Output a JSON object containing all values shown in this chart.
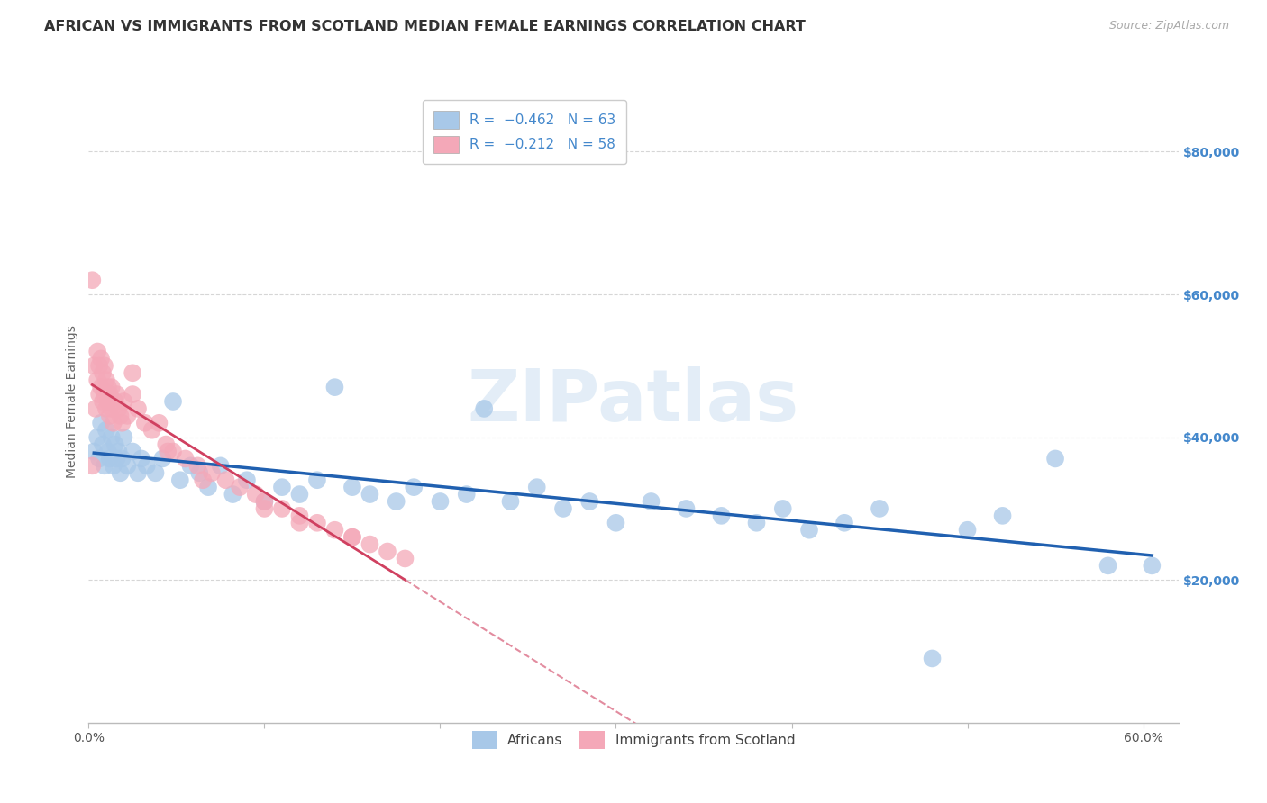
{
  "title": "AFRICAN VS IMMIGRANTS FROM SCOTLAND MEDIAN FEMALE EARNINGS CORRELATION CHART",
  "source": "Source: ZipAtlas.com",
  "ylabel": "Median Female Earnings",
  "yaxis_labels": [
    "$20,000",
    "$40,000",
    "$60,000",
    "$80,000"
  ],
  "yaxis_values": [
    20000,
    40000,
    60000,
    80000
  ],
  "legend_blue_r": "R = −0.462",
  "legend_blue_n": "N = 63",
  "legend_pink_r": "R = −0.212",
  "legend_pink_n": "N = 58",
  "legend_label_blue": "Africans",
  "legend_label_pink": "Immigrants from Scotland",
  "blue_color": "#a8c8e8",
  "pink_color": "#f4a8b8",
  "blue_line_color": "#2060b0",
  "pink_line_color": "#d04060",
  "background_color": "#ffffff",
  "grid_color": "#cccccc",
  "title_color": "#333333",
  "axis_label_color": "#4488cc",
  "watermark_color": "#c8ddf0",
  "watermark_text": "ZIPatlas",
  "xlim": [
    0.0,
    0.62
  ],
  "ylim": [
    0,
    90000
  ],
  "africans_x": [
    0.003,
    0.005,
    0.006,
    0.007,
    0.008,
    0.009,
    0.01,
    0.011,
    0.012,
    0.013,
    0.014,
    0.015,
    0.016,
    0.017,
    0.018,
    0.019,
    0.02,
    0.022,
    0.025,
    0.028,
    0.03,
    0.033,
    0.038,
    0.042,
    0.048,
    0.052,
    0.058,
    0.063,
    0.068,
    0.075,
    0.082,
    0.09,
    0.1,
    0.11,
    0.12,
    0.13,
    0.14,
    0.15,
    0.16,
    0.175,
    0.185,
    0.2,
    0.215,
    0.225,
    0.24,
    0.255,
    0.27,
    0.285,
    0.3,
    0.32,
    0.34,
    0.36,
    0.38,
    0.395,
    0.41,
    0.43,
    0.45,
    0.48,
    0.5,
    0.52,
    0.55,
    0.58,
    0.605
  ],
  "africans_y": [
    38000,
    40000,
    37000,
    42000,
    39000,
    36000,
    41000,
    38000,
    37000,
    40000,
    36000,
    39000,
    37000,
    38000,
    35000,
    37000,
    40000,
    36000,
    38000,
    35000,
    37000,
    36000,
    35000,
    37000,
    45000,
    34000,
    36000,
    35000,
    33000,
    36000,
    32000,
    34000,
    31000,
    33000,
    32000,
    34000,
    47000,
    33000,
    32000,
    31000,
    33000,
    31000,
    32000,
    44000,
    31000,
    33000,
    30000,
    31000,
    28000,
    31000,
    30000,
    29000,
    28000,
    30000,
    27000,
    28000,
    30000,
    9000,
    27000,
    29000,
    37000,
    22000,
    22000
  ],
  "scotland_x": [
    0.002,
    0.003,
    0.004,
    0.005,
    0.005,
    0.006,
    0.006,
    0.007,
    0.007,
    0.008,
    0.008,
    0.009,
    0.009,
    0.01,
    0.01,
    0.011,
    0.011,
    0.012,
    0.012,
    0.013,
    0.013,
    0.014,
    0.015,
    0.016,
    0.017,
    0.018,
    0.019,
    0.02,
    0.022,
    0.025,
    0.028,
    0.032,
    0.036,
    0.04,
    0.044,
    0.048,
    0.055,
    0.062,
    0.07,
    0.078,
    0.086,
    0.095,
    0.1,
    0.11,
    0.12,
    0.13,
    0.14,
    0.15,
    0.16,
    0.17,
    0.002,
    0.025,
    0.045,
    0.065,
    0.1,
    0.12,
    0.15,
    0.18
  ],
  "scotland_y": [
    36000,
    50000,
    44000,
    48000,
    52000,
    46000,
    50000,
    47000,
    51000,
    45000,
    49000,
    46000,
    50000,
    44000,
    48000,
    45000,
    47000,
    43000,
    46000,
    44000,
    47000,
    42000,
    45000,
    46000,
    44000,
    43000,
    42000,
    45000,
    43000,
    46000,
    44000,
    42000,
    41000,
    42000,
    39000,
    38000,
    37000,
    36000,
    35000,
    34000,
    33000,
    32000,
    31000,
    30000,
    29000,
    28000,
    27000,
    26000,
    25000,
    24000,
    62000,
    49000,
    38000,
    34000,
    30000,
    28000,
    26000,
    23000
  ],
  "title_fontsize": 11.5,
  "source_fontsize": 9,
  "axis_label_fontsize": 10,
  "tick_fontsize": 10,
  "legend_fontsize": 11
}
